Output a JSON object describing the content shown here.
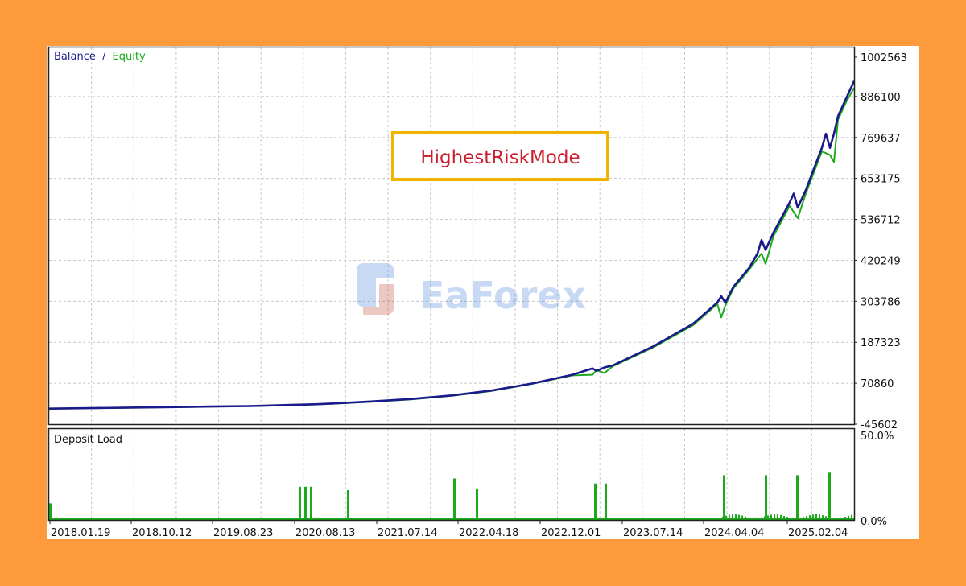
{
  "chart_data": [
    {
      "type": "line",
      "legend": [
        "Balance",
        "Equity"
      ],
      "legend_separator": "/",
      "legend_placement": "top-left",
      "grid": true,
      "y_ticks": [
        "1002563",
        "886100",
        "769637",
        "653175",
        "536712",
        "420249",
        "303786",
        "187323",
        "70860",
        "-45602"
      ],
      "ylim": [
        -45602,
        1002563
      ],
      "x_ticks": [
        "2018.01.19",
        "2018.10.12",
        "2019.08.23",
        "2020.08.13",
        "2021.07.14",
        "2022.04.18",
        "2022.12.01",
        "2023.07.14",
        "2024.04.04",
        "2025.02.04"
      ],
      "series": [
        {
          "name": "Balance",
          "color": "#1a1a8c",
          "points": [
            [
              0,
              -1500
            ],
            [
              0.05,
              0
            ],
            [
              0.1,
              1500
            ],
            [
              0.15,
              3000
            ],
            [
              0.2,
              4500
            ],
            [
              0.25,
              6000
            ],
            [
              0.3,
              9000
            ],
            [
              0.33,
              11000
            ],
            [
              0.35,
              13000
            ],
            [
              0.4,
              19000
            ],
            [
              0.45,
              26000
            ],
            [
              0.5,
              36000
            ],
            [
              0.55,
              50000
            ],
            [
              0.6,
              70000
            ],
            [
              0.65,
              95000
            ],
            [
              0.675,
              113000
            ],
            [
              0.68,
              106000
            ],
            [
              0.69,
              116000
            ],
            [
              0.7,
              121000
            ],
            [
              0.75,
              175000
            ],
            [
              0.8,
              240000
            ],
            [
              0.83,
              300000
            ],
            [
              0.835,
              318000
            ],
            [
              0.84,
              300000
            ],
            [
              0.85,
              345000
            ],
            [
              0.87,
              400000
            ],
            [
              0.88,
              440000
            ],
            [
              0.885,
              478000
            ],
            [
              0.89,
              450000
            ],
            [
              0.9,
              500000
            ],
            [
              0.92,
              585000
            ],
            [
              0.925,
              610000
            ],
            [
              0.93,
              570000
            ],
            [
              0.94,
              620000
            ],
            [
              0.95,
              680000
            ],
            [
              0.96,
              740000
            ],
            [
              0.965,
              780000
            ],
            [
              0.97,
              740000
            ],
            [
              0.975,
              780000
            ],
            [
              0.98,
              830000
            ],
            [
              0.99,
              880000
            ],
            [
              1.0,
              930000
            ]
          ]
        },
        {
          "name": "Equity",
          "color": "#1aaa1a",
          "points": [
            [
              0,
              -2000
            ],
            [
              0.1,
              1000
            ],
            [
              0.2,
              4000
            ],
            [
              0.3,
              8000
            ],
            [
              0.35,
              12000
            ],
            [
              0.4,
              18000
            ],
            [
              0.45,
              25000
            ],
            [
              0.5,
              35000
            ],
            [
              0.55,
              49000
            ],
            [
              0.6,
              69000
            ],
            [
              0.65,
              93000
            ],
            [
              0.675,
              95000
            ],
            [
              0.68,
              108000
            ],
            [
              0.69,
              100000
            ],
            [
              0.7,
              119000
            ],
            [
              0.75,
              172000
            ],
            [
              0.8,
              236000
            ],
            [
              0.83,
              296000
            ],
            [
              0.835,
              258000
            ],
            [
              0.84,
              292000
            ],
            [
              0.85,
              340000
            ],
            [
              0.87,
              395000
            ],
            [
              0.885,
              440000
            ],
            [
              0.89,
              410000
            ],
            [
              0.9,
              490000
            ],
            [
              0.92,
              575000
            ],
            [
              0.93,
              540000
            ],
            [
              0.94,
              610000
            ],
            [
              0.95,
              670000
            ],
            [
              0.96,
              730000
            ],
            [
              0.97,
              720000
            ],
            [
              0.975,
              700000
            ],
            [
              0.98,
              820000
            ],
            [
              0.99,
              870000
            ],
            [
              1.0,
              910000
            ]
          ]
        }
      ],
      "annotation": "HighestRiskMode",
      "watermark": "EaForex"
    },
    {
      "type": "bar",
      "title": "Deposit Load",
      "y_ticks": [
        "50.0%",
        "0.0%"
      ],
      "ylim": [
        0,
        50
      ],
      "series": [
        {
          "name": "",
          "color": "#1aaa1a",
          "baseline": 1,
          "spikes": [
            [
              0.0,
              10
            ],
            [
              0.31,
              20
            ],
            [
              0.317,
              20
            ],
            [
              0.324,
              20
            ],
            [
              0.37,
              18
            ],
            [
              0.502,
              25
            ],
            [
              0.53,
              19
            ],
            [
              0.677,
              22
            ],
            [
              0.69,
              22
            ],
            [
              0.837,
              27
            ],
            [
              0.889,
              27
            ],
            [
              0.928,
              27
            ],
            [
              0.968,
              29
            ]
          ],
          "noise_range": [
            0.82,
            1.0
          ]
        }
      ]
    }
  ]
}
